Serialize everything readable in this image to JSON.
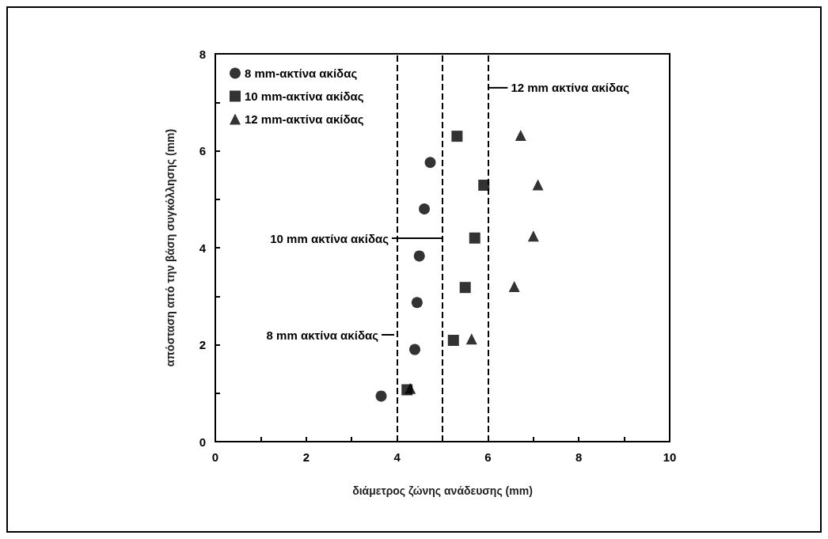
{
  "chart_data": {
    "type": "scatter",
    "xlabel": "διάμετρος ζώνης ανάδευσης (mm)",
    "ylabel": "απόσταση από την βάση συγκόλλησης (mm)",
    "xlim": [
      0,
      10
    ],
    "xticks": [
      0,
      {
        "value": 1,
        "label": null
      },
      2,
      {
        "value": 3,
        "label": null
      },
      4,
      {
        "value": 5,
        "label": null
      },
      6,
      {
        "value": 7,
        "label": null
      },
      8,
      {
        "value": 9,
        "label": null
      },
      10
    ],
    "ylim": [
      0,
      8
    ],
    "yticks": [
      0,
      {
        "value": 1,
        "label": null
      },
      2,
      {
        "value": 3,
        "label": null
      },
      4,
      {
        "value": 5,
        "label": null
      },
      6,
      {
        "value": 7,
        "label": null
      },
      8
    ],
    "grid": false,
    "legend": "top left",
    "series": [
      {
        "name": "8 mm-ακτίνα ακίδας",
        "color": "#000000",
        "marker": "circle",
        "x": [
          3.65,
          4.39,
          4.44,
          4.49,
          4.6,
          4.73
        ],
        "values": [
          0.94,
          1.9,
          2.87,
          3.83,
          4.8,
          5.76
        ]
      },
      {
        "name": "10 mm-ακτίνα ακίδας",
        "color": "#000000",
        "marker": "square",
        "x": [
          4.22,
          5.24,
          5.5,
          5.71,
          5.91,
          5.32
        ],
        "values": [
          1.07,
          2.09,
          3.18,
          4.2,
          5.29,
          6.3
        ]
      },
      {
        "name": "12 mm-ακτίνα ακίδας",
        "color": "#000000",
        "marker": "triangle",
        "x": [
          4.29,
          5.64,
          6.58,
          7.0,
          7.1,
          6.72
        ],
        "values": [
          1.1,
          2.12,
          3.2,
          4.24,
          5.3,
          6.32
        ]
      }
    ],
    "ref_lines": [
      {
        "axis": "x",
        "value": 4,
        "line_style": "dashed"
      },
      {
        "axis": "x",
        "value": 5,
        "line_style": "dashed"
      },
      {
        "axis": "x",
        "value": 6,
        "line_style": "dashed"
      }
    ],
    "annotations": [
      {
        "text": "12 mm ακτίνα ακίδας",
        "x": 6,
        "y": 7.3
      },
      "10 mm ακτίνα ακίδας",
      "8 mm ακτίνα ακίδας"
    ]
  }
}
